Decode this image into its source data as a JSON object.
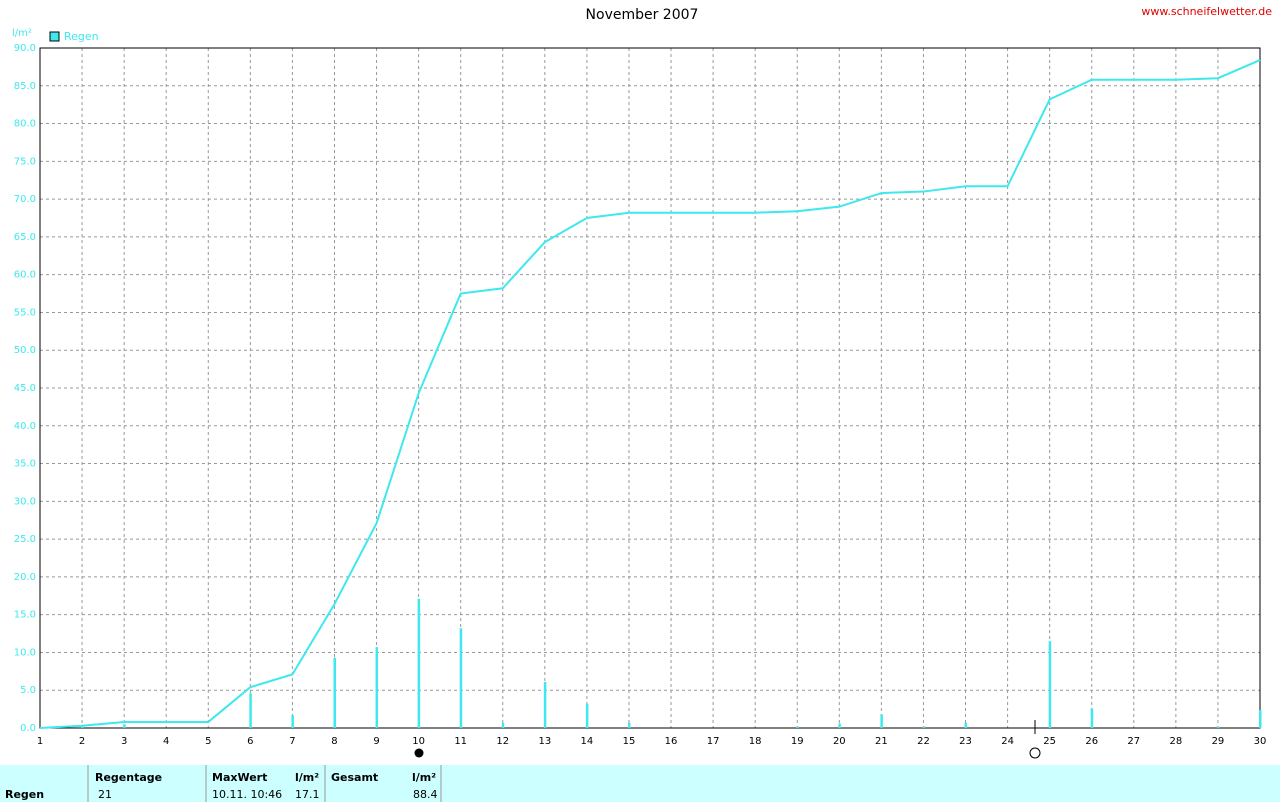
{
  "chart_data": {
    "type": "line",
    "title": "November 2007",
    "source": "www.schneifelwetter.de",
    "y_label": "l/m²",
    "x": [
      1,
      2,
      3,
      4,
      5,
      6,
      7,
      8,
      9,
      10,
      11,
      12,
      13,
      14,
      15,
      16,
      17,
      18,
      19,
      20,
      21,
      22,
      23,
      24,
      25,
      26,
      27,
      28,
      29,
      30
    ],
    "xlim": [
      1,
      30
    ],
    "xticks": [
      1,
      2,
      3,
      4,
      5,
      6,
      7,
      8,
      9,
      10,
      11,
      12,
      13,
      14,
      15,
      16,
      17,
      18,
      19,
      20,
      21,
      22,
      23,
      24,
      25,
      26,
      27,
      28,
      29,
      30
    ],
    "ylim": [
      0,
      90
    ],
    "yticks": [
      {
        "value": 0,
        "label": "0.0"
      },
      {
        "value": 5,
        "label": "5.0"
      },
      {
        "value": 10,
        "label": "10.0"
      },
      {
        "value": 15,
        "label": "15.0"
      },
      {
        "value": 20,
        "label": "20.0"
      },
      {
        "value": 25,
        "label": "25.0"
      },
      {
        "value": 30,
        "label": "30.0"
      },
      {
        "value": 35,
        "label": "35.0"
      },
      {
        "value": 40,
        "label": "40.0"
      },
      {
        "value": 45,
        "label": "45.0"
      },
      {
        "value": 50,
        "label": "50.0"
      },
      {
        "value": 55,
        "label": "55.0"
      },
      {
        "value": 60,
        "label": "60.0"
      },
      {
        "value": 65,
        "label": "65.0"
      },
      {
        "value": 70,
        "label": "70.0"
      },
      {
        "value": 75,
        "label": "75.0"
      },
      {
        "value": 80,
        "label": "80.0"
      },
      {
        "value": 85,
        "label": "85.0"
      },
      {
        "value": 90,
        "label": "90.0"
      }
    ],
    "grid": true,
    "legend": "top-left",
    "series": [
      {
        "name": "Regen",
        "color": "#3ee8ee",
        "values": [
          0.0,
          0.3,
          0.8,
          0.8,
          0.8,
          5.4,
          7.1,
          16.4,
          27.1,
          44.3,
          57.5,
          58.2,
          64.3,
          67.5,
          68.2,
          68.2,
          68.2,
          68.2,
          68.4,
          69.0,
          70.8,
          71.0,
          71.7,
          71.7,
          83.2,
          85.8,
          85.8,
          85.8,
          86.0,
          88.4
        ]
      },
      {
        "type": "bar",
        "color": "#3ee8ee",
        "values": [
          0,
          0.3,
          0.5,
          0,
          0,
          4.6,
          1.7,
          9.3,
          10.7,
          17.1,
          13.2,
          0.7,
          6.1,
          3.2,
          0.7,
          0,
          0,
          0,
          0.2,
          0.6,
          1.8,
          0.2,
          0.7,
          0,
          11.5,
          2.6,
          0,
          0,
          0.2,
          2.4
        ]
      }
    ]
  },
  "summary": {
    "label": "Regen",
    "rain_days_header": "Regentage",
    "rain_days": 21,
    "max_header": "MaxWert",
    "max_time": "10.11.  10:46",
    "max_unit": "l/m²",
    "max_value": 17.1,
    "total_header": "Gesamt",
    "total_unit": "l/m²",
    "total_value": 88.4
  }
}
